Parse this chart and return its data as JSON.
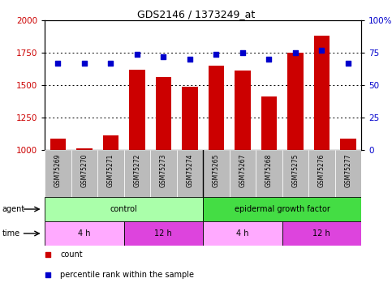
{
  "title": "GDS2146 / 1373249_at",
  "samples": [
    "GSM75269",
    "GSM75270",
    "GSM75271",
    "GSM75272",
    "GSM75273",
    "GSM75274",
    "GSM75265",
    "GSM75267",
    "GSM75268",
    "GSM75275",
    "GSM75276",
    "GSM75277"
  ],
  "counts": [
    1085,
    1015,
    1115,
    1620,
    1565,
    1490,
    1650,
    1610,
    1415,
    1750,
    1880,
    1090
  ],
  "percentile_ranks": [
    67,
    67,
    67,
    74,
    72,
    70,
    74,
    75,
    70,
    75,
    77,
    67
  ],
  "ylim_left": [
    1000,
    2000
  ],
  "ylim_right": [
    0,
    100
  ],
  "yticks_left": [
    1000,
    1250,
    1500,
    1750,
    2000
  ],
  "yticks_right": [
    0,
    25,
    50,
    75,
    100
  ],
  "bar_color": "#cc0000",
  "scatter_color": "#0000cc",
  "agent_groups": [
    {
      "label": "control",
      "start": 0,
      "end": 6,
      "color": "#aaffaa"
    },
    {
      "label": "epidermal growth factor",
      "start": 6,
      "end": 12,
      "color": "#44dd44"
    }
  ],
  "time_groups": [
    {
      "label": "4 h",
      "start": 0,
      "end": 3,
      "color": "#ffaaff"
    },
    {
      "label": "12 h",
      "start": 3,
      "end": 6,
      "color": "#dd44dd"
    },
    {
      "label": "4 h",
      "start": 6,
      "end": 9,
      "color": "#ffaaff"
    },
    {
      "label": "12 h",
      "start": 9,
      "end": 12,
      "color": "#dd44dd"
    }
  ],
  "legend_items": [
    {
      "label": "count",
      "color": "#cc0000"
    },
    {
      "label": "percentile rank within the sample",
      "color": "#0000cc"
    }
  ],
  "background_color": "#ffffff",
  "tick_area_bg": "#bbbbbb",
  "figsize": [
    4.83,
    3.75
  ],
  "dpi": 100
}
